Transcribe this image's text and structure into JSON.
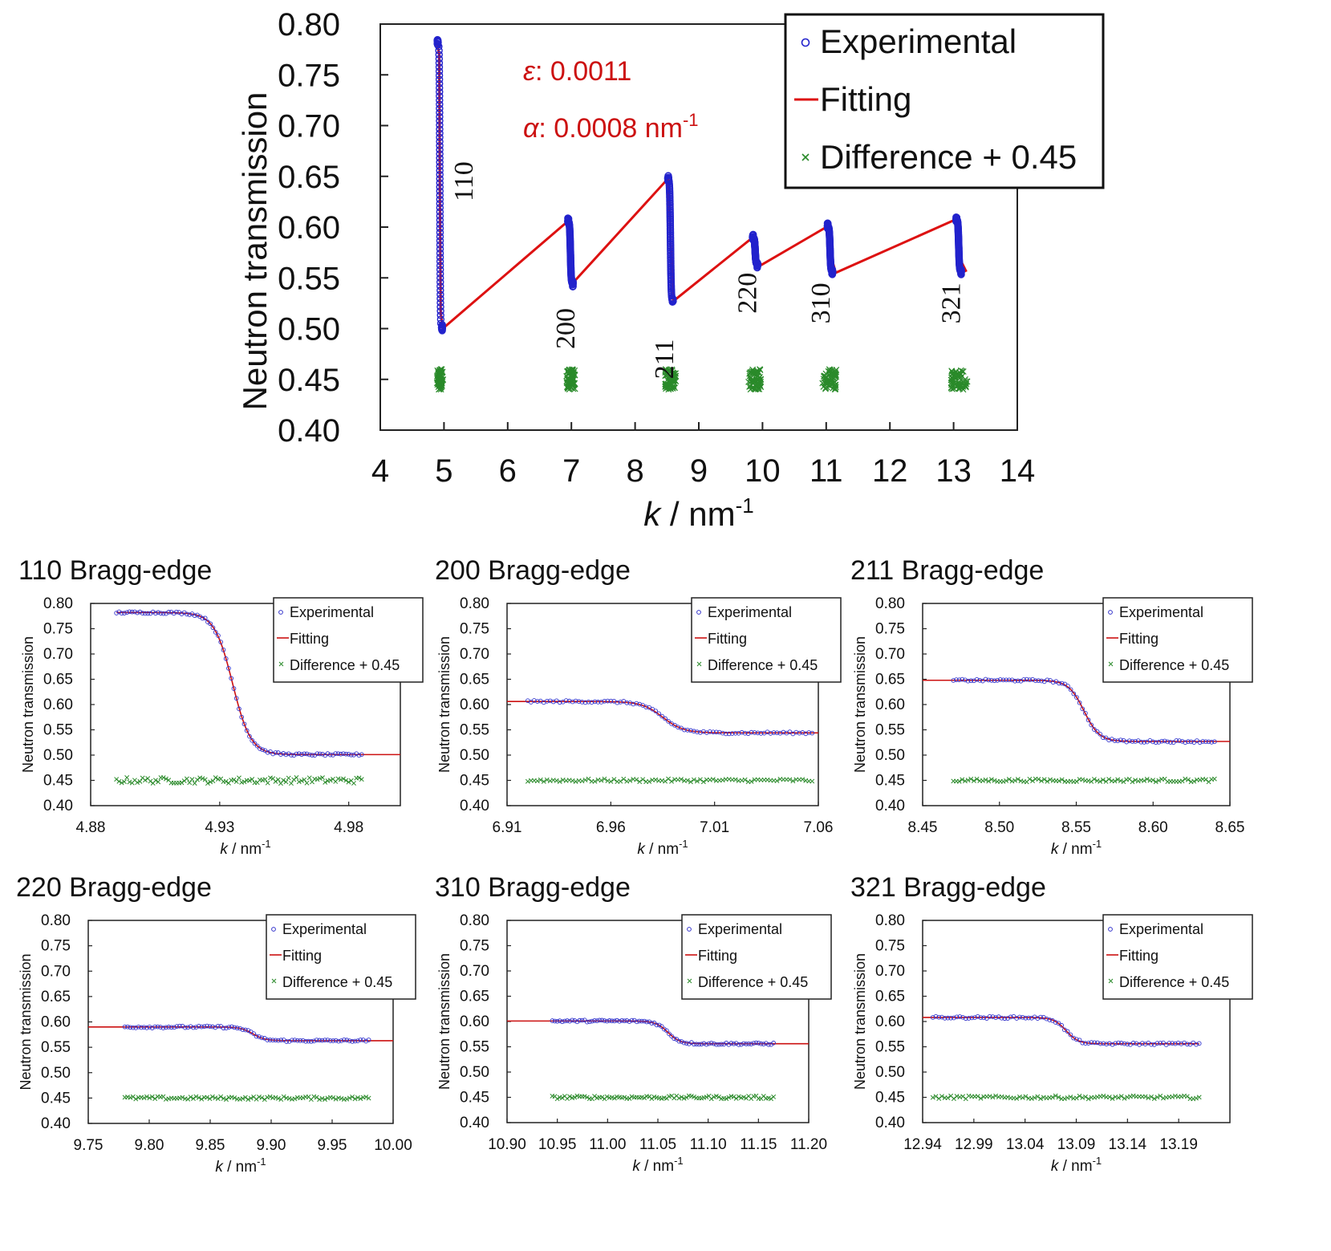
{
  "chart_data": [
    {
      "id": "main",
      "type": "scatter",
      "xlabel_var": "k",
      "xlabel_unit": " / nm",
      "xlabel_sup": "-1",
      "ylabel": "Neutron transmission",
      "xlim": [
        4,
        14
      ],
      "ylim": [
        0.4,
        0.8
      ],
      "xticks": [
        4,
        5,
        6,
        7,
        8,
        9,
        10,
        11,
        12,
        13,
        14
      ],
      "yticks": [
        0.4,
        0.45,
        0.5,
        0.55,
        0.6,
        0.65,
        0.7,
        0.75,
        0.8
      ],
      "ytick_labels": [
        "0.40",
        "0.45",
        "0.50",
        "0.55",
        "0.60",
        "0.65",
        "0.70",
        "0.75",
        "0.80"
      ],
      "legend": [
        "Experimental",
        "Fitting",
        "Difference + 0.45"
      ],
      "legend_position": "top-right",
      "colors": {
        "experimental": "#2222cc",
        "fitting": "#dd1111",
        "difference": "#1e7a1e"
      },
      "annotations": {
        "epsilon_symbol": "ε",
        "epsilon_value": ": 0.0011",
        "alpha_symbol": "α",
        "alpha_value": ": 0.0008 nm",
        "alpha_sup": "-1"
      },
      "edge_labels": [
        {
          "label": "110",
          "k": 5.45,
          "y": 0.645
        },
        {
          "label": "200",
          "k": 7.05,
          "y": 0.5
        },
        {
          "label": "211",
          "k": 8.6,
          "y": 0.47
        },
        {
          "label": "220",
          "k": 9.9,
          "y": 0.535
        },
        {
          "label": "310",
          "k": 11.05,
          "y": 0.525
        },
        {
          "label": "321",
          "k": 13.1,
          "y": 0.525
        }
      ],
      "fit_polyline": [
        [
          4.89,
          0.782
        ],
        [
          4.925,
          0.77
        ],
        [
          4.935,
          0.64
        ],
        [
          4.95,
          0.515
        ],
        [
          4.98,
          0.5
        ],
        [
          6.95,
          0.606
        ],
        [
          6.985,
          0.57
        ],
        [
          7.01,
          0.544
        ],
        [
          8.52,
          0.648
        ],
        [
          8.555,
          0.59
        ],
        [
          8.6,
          0.527
        ],
        [
          9.85,
          0.59
        ],
        [
          9.88,
          0.568
        ],
        [
          9.99,
          0.563
        ],
        [
          11.03,
          0.601
        ],
        [
          11.06,
          0.575
        ],
        [
          11.15,
          0.555
        ],
        [
          13.05,
          0.608
        ],
        [
          13.09,
          0.57
        ],
        [
          13.2,
          0.556
        ]
      ],
      "edges": [
        {
          "k0": 4.935,
          "w": 0.004,
          "hi": 0.782,
          "lo": 0.501,
          "kmin": 4.89,
          "kmax": 4.985
        },
        {
          "k0": 6.985,
          "w": 0.006,
          "hi": 0.606,
          "lo": 0.544,
          "kmin": 6.92,
          "kmax": 7.06
        },
        {
          "k0": 8.555,
          "w": 0.006,
          "hi": 0.648,
          "lo": 0.527,
          "kmin": 8.47,
          "kmax": 8.64
        },
        {
          "k0": 9.885,
          "w": 0.006,
          "hi": 0.59,
          "lo": 0.563,
          "kmin": 9.78,
          "kmax": 9.98
        },
        {
          "k0": 11.06,
          "w": 0.006,
          "hi": 0.601,
          "lo": 0.556,
          "kmin": 10.94,
          "kmax": 11.16
        },
        {
          "k0": 13.08,
          "w": 0.006,
          "hi": 0.608,
          "lo": 0.556,
          "kmin": 12.96,
          "kmax": 13.22
        }
      ]
    },
    {
      "id": "p110",
      "type": "scatter",
      "title": "110 Bragg-edge",
      "xlabel_var": "k",
      "xlabel_unit": " / nm",
      "xlabel_sup": "-1",
      "ylabel": "Neutron transmission",
      "xlim": [
        4.88,
        5.0
      ],
      "ylim": [
        0.4,
        0.8
      ],
      "xticks": [
        4.88,
        4.93,
        4.98
      ],
      "xtick_labels": [
        "4.88",
        "4.93",
        "4.98"
      ],
      "yticks": [
        0.4,
        0.45,
        0.5,
        0.55,
        0.6,
        0.65,
        0.7,
        0.75,
        0.8
      ],
      "ytick_labels": [
        "0.40",
        "0.45",
        "0.50",
        "0.55",
        "0.60",
        "0.65",
        "0.70",
        "0.75",
        "0.80"
      ],
      "legend": [
        "Experimental",
        "Fitting",
        "Difference + 0.45"
      ],
      "legend_position": "top-right",
      "edge": {
        "k0": 4.935,
        "w": 0.0035,
        "hi": 0.782,
        "lo": 0.501
      },
      "fit_range": [
        4.89,
        5.0
      ],
      "data_range": [
        4.89,
        4.985
      ],
      "n_points": 95,
      "diff_baseline": 0.45,
      "diff_noise": 0.006
    },
    {
      "id": "p200",
      "type": "scatter",
      "title": "200 Bragg-edge",
      "xlabel_var": "k",
      "xlabel_unit": " / nm",
      "xlabel_sup": "-1",
      "ylabel": "Neutron transmission",
      "xlim": [
        6.91,
        7.06
      ],
      "ylim": [
        0.4,
        0.8
      ],
      "xticks": [
        6.91,
        6.96,
        7.01,
        7.06
      ],
      "xtick_labels": [
        "6.91",
        "6.96",
        "7.01",
        "7.06"
      ],
      "yticks": [
        0.4,
        0.45,
        0.5,
        0.55,
        0.6,
        0.65,
        0.7,
        0.75,
        0.8
      ],
      "ytick_labels": [
        "0.40",
        "0.45",
        "0.50",
        "0.55",
        "0.60",
        "0.65",
        "0.70",
        "0.75",
        "0.80"
      ],
      "legend": [
        "Experimental",
        "Fitting",
        "Difference + 0.45"
      ],
      "legend_position": "top-right",
      "edge": {
        "k0": 6.985,
        "w": 0.005,
        "hi": 0.606,
        "lo": 0.544
      },
      "fit_range": [
        6.91,
        7.06
      ],
      "data_range": [
        6.92,
        7.057
      ],
      "n_points": 90,
      "diff_baseline": 0.45,
      "diff_noise": 0.003
    },
    {
      "id": "p211",
      "type": "scatter",
      "title": "211 Bragg-edge",
      "xlabel_var": "k",
      "xlabel_unit": " / nm",
      "xlabel_sup": "-1",
      "ylabel": "Neutron transmission",
      "xlim": [
        8.45,
        8.65
      ],
      "ylim": [
        0.4,
        0.8
      ],
      "xticks": [
        8.45,
        8.5,
        8.55,
        8.6,
        8.65
      ],
      "xtick_labels": [
        "8.45",
        "8.50",
        "8.55",
        "8.60",
        "8.65"
      ],
      "yticks": [
        0.4,
        0.45,
        0.5,
        0.55,
        0.6,
        0.65,
        0.7,
        0.75,
        0.8
      ],
      "ytick_labels": [
        "0.40",
        "0.45",
        "0.50",
        "0.55",
        "0.60",
        "0.65",
        "0.70",
        "0.75",
        "0.80"
      ],
      "legend": [
        "Experimental",
        "Fitting",
        "Difference + 0.45"
      ],
      "legend_position": "top-right",
      "edge": {
        "k0": 8.555,
        "w": 0.005,
        "hi": 0.648,
        "lo": 0.527
      },
      "fit_range": [
        8.45,
        8.65
      ],
      "data_range": [
        8.47,
        8.64
      ],
      "n_points": 90,
      "diff_baseline": 0.45,
      "diff_noise": 0.003
    },
    {
      "id": "p220",
      "type": "scatter",
      "title": "220 Bragg-edge",
      "xlabel_var": "k",
      "xlabel_unit": " / nm",
      "xlabel_sup": "-1",
      "ylabel": "Neutron transmission",
      "xlim": [
        9.75,
        10.0
      ],
      "ylim": [
        0.4,
        0.8
      ],
      "xticks": [
        9.75,
        9.8,
        9.85,
        9.9,
        9.95,
        10.0
      ],
      "xtick_labels": [
        "9.75",
        "9.80",
        "9.85",
        "9.90",
        "9.95",
        "10.00"
      ],
      "yticks": [
        0.4,
        0.45,
        0.5,
        0.55,
        0.6,
        0.65,
        0.7,
        0.75,
        0.8
      ],
      "ytick_labels": [
        "0.40",
        "0.45",
        "0.50",
        "0.55",
        "0.60",
        "0.65",
        "0.70",
        "0.75",
        "0.80"
      ],
      "legend": [
        "Experimental",
        "Fitting",
        "Difference + 0.45"
      ],
      "legend_position": "top-right",
      "edge": {
        "k0": 9.885,
        "w": 0.005,
        "hi": 0.59,
        "lo": 0.563
      },
      "fit_range": [
        9.75,
        10.0
      ],
      "data_range": [
        9.78,
        9.98
      ],
      "n_points": 90,
      "diff_baseline": 0.45,
      "diff_noise": 0.003
    },
    {
      "id": "p310",
      "type": "scatter",
      "title": "310 Bragg-edge",
      "xlabel_var": "k",
      "xlabel_unit": " / nm",
      "xlabel_sup": "-1",
      "ylabel": "Neutron transmission",
      "xlim": [
        10.9,
        11.2
      ],
      "ylim": [
        0.4,
        0.8
      ],
      "xticks": [
        10.9,
        10.95,
        11.0,
        11.05,
        11.1,
        11.15,
        11.2
      ],
      "xtick_labels": [
        "10.90",
        "10.95",
        "11.00",
        "11.05",
        "11.10",
        "11.15",
        "11.20"
      ],
      "yticks": [
        0.4,
        0.45,
        0.5,
        0.55,
        0.6,
        0.65,
        0.7,
        0.75,
        0.8
      ],
      "ytick_labels": [
        "0.40",
        "0.45",
        "0.50",
        "0.55",
        "0.60",
        "0.65",
        "0.70",
        "0.75",
        "0.80"
      ],
      "legend": [
        "Experimental",
        "Fitting",
        "Difference + 0.45"
      ],
      "legend_position": "top-right",
      "edge": {
        "k0": 11.06,
        "w": 0.006,
        "hi": 0.601,
        "lo": 0.556
      },
      "fit_range": [
        10.9,
        11.2
      ],
      "data_range": [
        10.945,
        11.165
      ],
      "n_points": 90,
      "diff_baseline": 0.45,
      "diff_noise": 0.003
    },
    {
      "id": "p321",
      "type": "scatter",
      "title": "321 Bragg-edge",
      "xlabel_var": "k",
      "xlabel_unit": " / nm",
      "xlabel_sup": "-1",
      "ylabel": "Neutron transmission",
      "xlim": [
        12.94,
        13.24
      ],
      "ylim": [
        0.4,
        0.8
      ],
      "xticks": [
        12.94,
        12.99,
        13.04,
        13.09,
        13.14,
        13.19
      ],
      "xtick_labels": [
        "12.94",
        "12.99",
        "13.04",
        "13.09",
        "13.14",
        "13.19"
      ],
      "yticks": [
        0.4,
        0.45,
        0.5,
        0.55,
        0.6,
        0.65,
        0.7,
        0.75,
        0.8
      ],
      "ytick_labels": [
        "0.40",
        "0.45",
        "0.50",
        "0.55",
        "0.60",
        "0.65",
        "0.70",
        "0.75",
        "0.80"
      ],
      "legend": [
        "Experimental",
        "Fitting",
        "Difference + 0.45"
      ],
      "legend_position": "top-right",
      "edge": {
        "k0": 13.08,
        "w": 0.006,
        "hi": 0.608,
        "lo": 0.556
      },
      "fit_range": [
        12.94,
        13.21
      ],
      "data_range": [
        12.95,
        13.21
      ],
      "n_points": 90,
      "diff_baseline": 0.45,
      "diff_noise": 0.003
    }
  ]
}
